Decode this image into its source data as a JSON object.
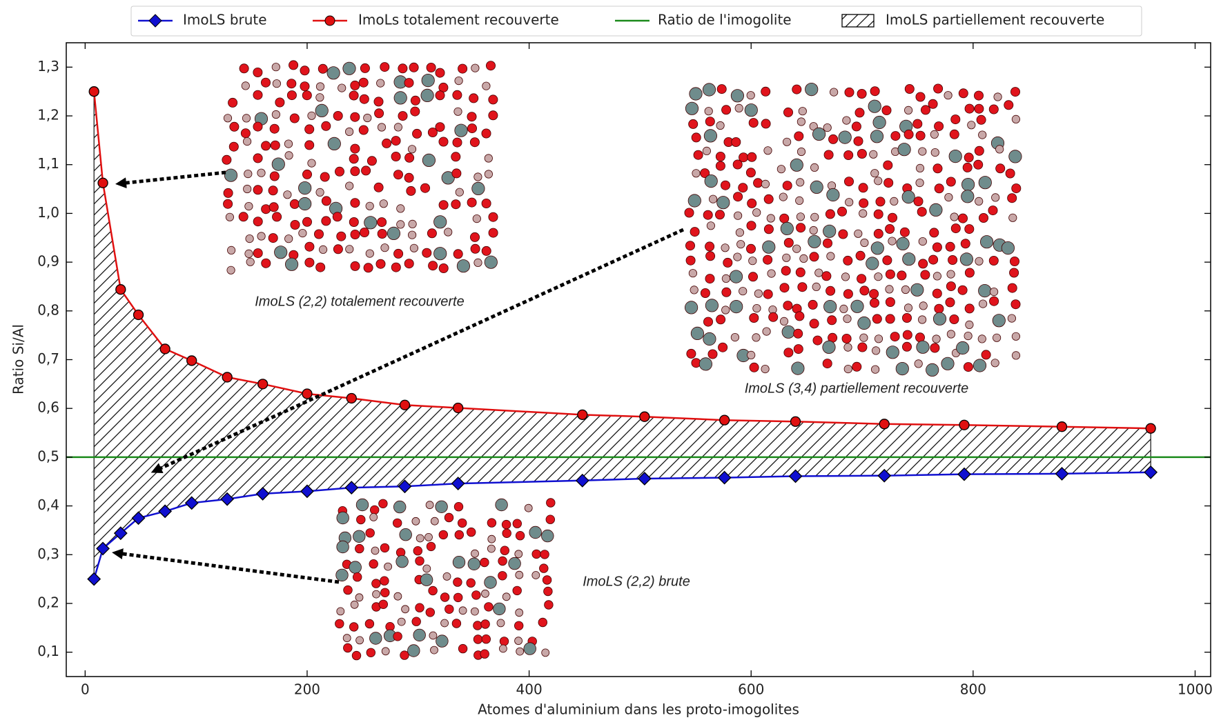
{
  "chart_data": {
    "type": "line",
    "x_label": "Atomes d'aluminium dans les proto-imogolites",
    "y_label": "Ratio Si/Al",
    "x": [
      8,
      16,
      32,
      48,
      72,
      96,
      128,
      160,
      200,
      240,
      288,
      336,
      448,
      504,
      576,
      640,
      720,
      792,
      880,
      960
    ],
    "series": [
      {
        "name": "ImoLS brute",
        "color": "#1010d0",
        "marker": "diamond",
        "values": [
          0.25,
          0.3125,
          0.344,
          0.375,
          0.389,
          0.406,
          0.414,
          0.425,
          0.43,
          0.4375,
          0.44,
          0.446,
          0.452,
          0.456,
          0.458,
          0.461,
          0.462,
          0.465,
          0.466,
          0.469
        ]
      },
      {
        "name": "ImoLs totalement recouverte",
        "color": "#e01010",
        "marker": "circle",
        "values": [
          1.25,
          1.0625,
          0.844,
          0.792,
          0.722,
          0.698,
          0.664,
          0.65,
          0.63,
          0.6208,
          0.607,
          0.601,
          0.587,
          0.583,
          0.576,
          0.573,
          0.568,
          0.566,
          0.5625,
          0.559
        ]
      }
    ],
    "reference_line": {
      "name": "Ratio de l'imogolite",
      "value": 0.5,
      "color": "#1a8a1a"
    },
    "fill_between": {
      "name": "ImoLS partiellement recouverte"
    },
    "annotations": [
      "ImoLS (2,2) totalement recouverte",
      "ImoLS (3,4) partiellement recouverte",
      "ImoLS (2,2) brute"
    ],
    "xlim": [
      -17,
      1014
    ],
    "ylim": [
      0.05,
      1.35
    ],
    "xticks": [
      0,
      200,
      400,
      600,
      800,
      1000
    ],
    "yticks": [
      {
        "value": 0.1,
        "label": "0,1"
      },
      {
        "value": 0.2,
        "label": "0,2"
      },
      {
        "value": 0.3,
        "label": "0,3"
      },
      {
        "value": 0.4,
        "label": "0,4"
      },
      {
        "value": 0.5,
        "label": "0,5"
      },
      {
        "value": 0.6,
        "label": "0,6"
      },
      {
        "value": 0.7,
        "label": "0,7"
      },
      {
        "value": 0.8,
        "label": "0,8"
      },
      {
        "value": 0.9,
        "label": "0,9"
      },
      {
        "value": 1.0,
        "label": "1,0"
      },
      {
        "value": 1.1,
        "label": "1,1"
      },
      {
        "value": 1.2,
        "label": "1,2"
      },
      {
        "value": 1.3,
        "label": "1,3"
      }
    ]
  }
}
